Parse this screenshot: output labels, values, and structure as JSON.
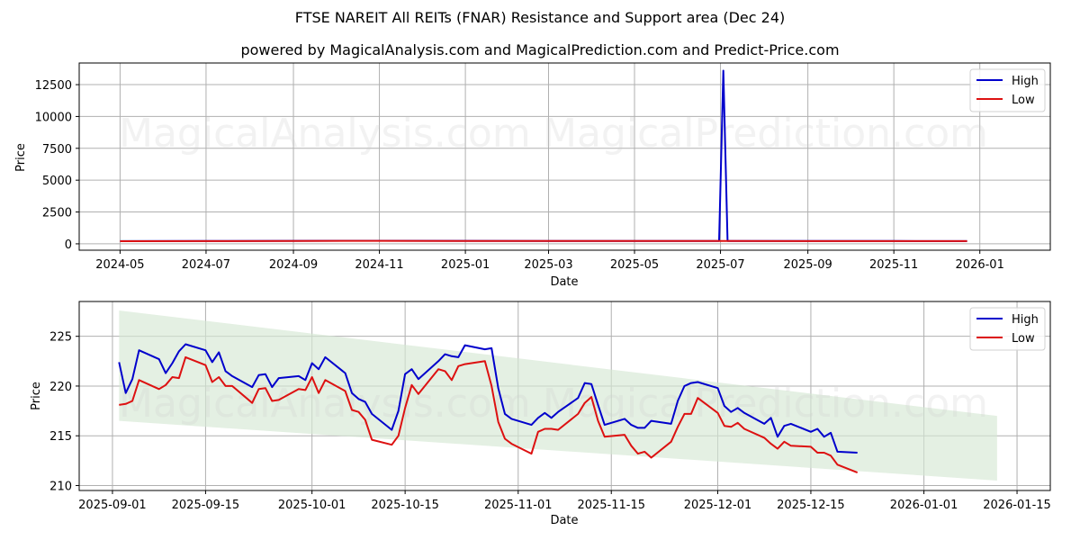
{
  "header": {
    "title": "FTSE NAREIT All REITs (FNAR) Resistance and Support area (Dec 24)",
    "subtitle": "powered by MagicalAnalysis.com and MagicalPrediction.com and Predict-Price.com"
  },
  "watermarks": [
    "MagicalAnalysis.com",
    "MagicalPrediction.com"
  ],
  "colors": {
    "high": "#0000cc",
    "low": "#dd1111",
    "band": "#d5e8d4",
    "grid": "#b0b0b0"
  },
  "chart_data": [
    {
      "type": "line",
      "title": "Long-term (top panel)",
      "xlabel": "Date",
      "ylabel": "Price",
      "x_ticks": [
        "2024-05",
        "2024-07",
        "2024-09",
        "2024-11",
        "2025-01",
        "2025-03",
        "2025-05",
        "2025-07",
        "2025-09",
        "2025-11",
        "2026-01"
      ],
      "y_ticks": [
        0,
        2500,
        5000,
        7500,
        10000,
        12500
      ],
      "ylim": [
        -500,
        14200
      ],
      "grid": true,
      "legend": {
        "position": "upper right",
        "entries": [
          "High",
          "Low"
        ]
      },
      "x": [
        "2024-05-01",
        "2024-07-01",
        "2024-09-01",
        "2024-11-01",
        "2025-01-01",
        "2025-03-01",
        "2025-05-01",
        "2025-06-30",
        "2025-07-03",
        "2025-07-06",
        "2025-09-01",
        "2025-11-01",
        "2025-12-23"
      ],
      "series": [
        {
          "name": "High",
          "values": [
            215,
            222,
            235,
            240,
            232,
            230,
            224,
            228,
            13600,
            228,
            221,
            222,
            214
          ]
        },
        {
          "name": "Low",
          "values": [
            210,
            217,
            229,
            234,
            226,
            225,
            218,
            222,
            222,
            222,
            215,
            216,
            211
          ]
        }
      ]
    },
    {
      "type": "line",
      "title": "Recent (bottom panel) with support/resistance band",
      "xlabel": "Date",
      "ylabel": "Price",
      "x_ticks": [
        "2025-09-01",
        "2025-09-15",
        "2025-10-01",
        "2025-10-15",
        "2025-11-01",
        "2025-11-15",
        "2025-12-01",
        "2025-12-15",
        "2026-01-01",
        "2026-01-15"
      ],
      "y_ticks": [
        210,
        215,
        220,
        225
      ],
      "ylim": [
        209.5,
        228.5
      ],
      "grid": true,
      "legend": {
        "position": "upper right",
        "entries": [
          "High",
          "Low"
        ]
      },
      "band": {
        "x": [
          "2025-09-02",
          "2026-01-12"
        ],
        "upper": [
          227.6,
          217.0
        ],
        "lower": [
          216.5,
          210.5
        ]
      },
      "x": [
        "2025-09-02",
        "2025-09-03",
        "2025-09-04",
        "2025-09-05",
        "2025-09-08",
        "2025-09-09",
        "2025-09-10",
        "2025-09-11",
        "2025-09-12",
        "2025-09-15",
        "2025-09-16",
        "2025-09-17",
        "2025-09-18",
        "2025-09-19",
        "2025-09-22",
        "2025-09-23",
        "2025-09-24",
        "2025-09-25",
        "2025-09-26",
        "2025-09-29",
        "2025-09-30",
        "2025-10-01",
        "2025-10-02",
        "2025-10-03",
        "2025-10-06",
        "2025-10-07",
        "2025-10-08",
        "2025-10-09",
        "2025-10-10",
        "2025-10-13",
        "2025-10-14",
        "2025-10-15",
        "2025-10-16",
        "2025-10-17",
        "2025-10-20",
        "2025-10-21",
        "2025-10-22",
        "2025-10-23",
        "2025-10-24",
        "2025-10-27",
        "2025-10-28",
        "2025-10-29",
        "2025-10-30",
        "2025-10-31",
        "2025-11-03",
        "2025-11-04",
        "2025-11-05",
        "2025-11-06",
        "2025-11-07",
        "2025-11-10",
        "2025-11-11",
        "2025-11-12",
        "2025-11-13",
        "2025-11-14",
        "2025-11-17",
        "2025-11-18",
        "2025-11-19",
        "2025-11-20",
        "2025-11-21",
        "2025-11-24",
        "2025-11-25",
        "2025-11-26",
        "2025-11-27",
        "2025-11-28",
        "2025-12-01",
        "2025-12-02",
        "2025-12-03",
        "2025-12-04",
        "2025-12-05",
        "2025-12-08",
        "2025-12-09",
        "2025-12-10",
        "2025-12-11",
        "2025-12-12",
        "2025-12-15",
        "2025-12-16",
        "2025-12-17",
        "2025-12-18",
        "2025-12-19",
        "2025-12-22"
      ],
      "series": [
        {
          "name": "High",
          "values": [
            222.4,
            219.3,
            220.7,
            223.6,
            222.7,
            221.3,
            222.3,
            223.5,
            224.2,
            223.6,
            222.4,
            223.4,
            221.5,
            221.0,
            219.9,
            221.1,
            221.2,
            219.9,
            220.8,
            221.0,
            220.6,
            222.3,
            221.7,
            222.9,
            221.3,
            219.3,
            218.7,
            218.4,
            217.2,
            215.6,
            217.5,
            221.2,
            221.7,
            220.7,
            222.5,
            223.2,
            223.0,
            222.9,
            224.1,
            223.7,
            223.8,
            219.8,
            217.2,
            216.7,
            216.1,
            216.8,
            217.3,
            216.8,
            217.4,
            218.8,
            220.3,
            220.2,
            218.1,
            216.1,
            216.7,
            216.1,
            215.8,
            215.8,
            216.5,
            216.2,
            218.5,
            220.0,
            220.3,
            220.4,
            219.8,
            218.0,
            217.4,
            217.8,
            217.3,
            216.2,
            216.8,
            214.9,
            216.0,
            216.2,
            215.4,
            215.7,
            214.9,
            215.3,
            213.4,
            213.3
          ]
        },
        {
          "name": "Low",
          "values": [
            218.1,
            218.2,
            218.5,
            220.6,
            219.7,
            220.1,
            220.9,
            220.8,
            222.9,
            222.1,
            220.4,
            220.9,
            220.0,
            220.0,
            218.3,
            219.7,
            219.8,
            218.5,
            218.6,
            219.7,
            219.6,
            220.9,
            219.3,
            220.6,
            219.5,
            217.6,
            217.4,
            216.6,
            214.6,
            214.1,
            215.0,
            217.8,
            220.1,
            219.2,
            221.7,
            221.5,
            220.6,
            222.0,
            222.2,
            222.5,
            220.0,
            216.4,
            214.7,
            214.2,
            213.2,
            215.4,
            215.7,
            215.7,
            215.6,
            217.2,
            218.3,
            218.9,
            216.5,
            214.9,
            215.1,
            214.0,
            213.2,
            213.4,
            212.8,
            214.4,
            215.9,
            217.2,
            217.2,
            218.8,
            217.3,
            216.0,
            215.9,
            216.3,
            215.7,
            214.8,
            214.2,
            213.7,
            214.4,
            214.0,
            213.9,
            213.3,
            213.3,
            213.0,
            212.1,
            211.3
          ]
        }
      ]
    }
  ]
}
